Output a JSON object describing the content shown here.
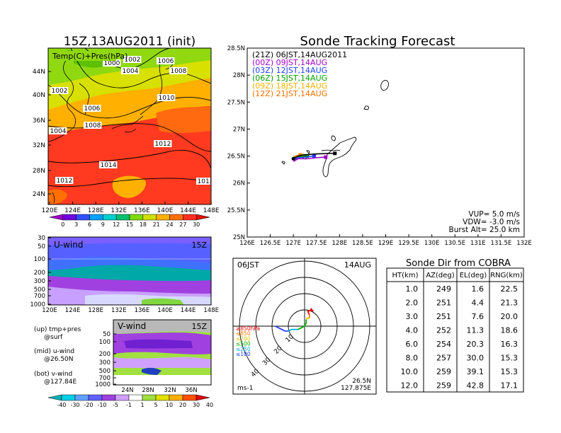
{
  "header": {
    "left_title": "15Z,13AUG2011 (init)",
    "right_title": "Sonde Tracking Forecast"
  },
  "temp_map": {
    "label": "Temp(C)+Pres(hPa)",
    "lat_ticks": [
      "44N",
      "40N",
      "36N",
      "32N",
      "28N",
      "24N"
    ],
    "lon_ticks": [
      "120E",
      "124E",
      "128E",
      "132E",
      "136E",
      "140E",
      "144E",
      "148E"
    ],
    "isobar_labels": [
      "1000",
      "1002",
      "1004",
      "1006",
      "1008",
      "1002",
      "1006",
      "1010",
      "1008",
      "1004",
      "1012",
      "1014",
      "1012",
      "101"
    ],
    "colorbar_ticks": [
      "0",
      "3",
      "6",
      "9",
      "12",
      "15",
      "18",
      "21",
      "24",
      "27",
      "30"
    ],
    "colorbar_colors": [
      "#a000c8",
      "#7000e0",
      "#3050ff",
      "#00a0ff",
      "#00d0d0",
      "#00c070",
      "#80dc00",
      "#d0e000",
      "#ffb000",
      "#ff7000",
      "#ff3020",
      "#e01000"
    ]
  },
  "u_wind": {
    "label": "U-wind",
    "time": "15Z",
    "p_ticks": [
      "30",
      "50",
      "100",
      "200",
      "300",
      "500",
      "700",
      "1000"
    ],
    "lon_ticks": [
      "120E",
      "124E",
      "128E",
      "132E",
      "136E",
      "140E",
      "144E",
      "148E"
    ]
  },
  "v_wind": {
    "label": "V-wind",
    "time": "15Z",
    "p_ticks": [
      "50",
      "100",
      "200",
      "300",
      "500",
      "700",
      "1000"
    ],
    "lat_ticks": [
      "24N",
      "28N",
      "32N",
      "36N"
    ],
    "colorbar_ticks": [
      "-40",
      "-30",
      "-20",
      "-10",
      "-5",
      "-1",
      "1",
      "5",
      "10",
      "20",
      "30",
      "40"
    ],
    "colorbar_colors": [
      "#00b4b4",
      "#00d0e8",
      "#60a0ff",
      "#6060ff",
      "#a040e0",
      "#d0a0ff",
      "#ffffff",
      "#a0e040",
      "#e0e000",
      "#ffb000",
      "#ff5000",
      "#e00000"
    ]
  },
  "legend_notes": {
    "up_line1": "(up) tmp+pres",
    "up_line2": "@surf",
    "mid_line1": "(mid) u-wind",
    "mid_line2": "@26.50N",
    "bot_line1": "(bot) v-wind",
    "bot_line2": "@127.84E"
  },
  "track_legend": [
    {
      "label": "(21Z)  06JST,14AUG2011",
      "color": "#000000"
    },
    {
      "label": "(00Z)  09JST,14AUG",
      "color": "#a000c8"
    },
    {
      "label": "(03Z)  12JST,14AUG",
      "color": "#2040ff"
    },
    {
      "label": "(06Z)  15JST,14AUG",
      "color": "#00a000"
    },
    {
      "label": "(09Z)  18JST,14AUG",
      "color": "#f0b000"
    },
    {
      "label": "(12Z)  21JST,14AUG",
      "color": "#ff7000"
    }
  ],
  "track_info": {
    "vup": "VUP=  5.0 m/s",
    "vdw": "VDW= -3.0 m/s",
    "burst": "Burst Alt= 25.0 km"
  },
  "chart_data": [
    {
      "type": "line",
      "title": "Sonde Tracking Forecast",
      "xlabel": "",
      "ylabel": "",
      "xlim": [
        126,
        132
      ],
      "ylim": [
        25,
        28.5
      ],
      "x_ticks": [
        "126E",
        "126.5E",
        "127E",
        "127.5E",
        "128E",
        "128.5E",
        "129E",
        "129.5E",
        "130E",
        "130.5E",
        "131E",
        "131.5E",
        "132E"
      ],
      "y_ticks": [
        "28.5N",
        "28N",
        "27.5N",
        "27N",
        "26.5N",
        "26N",
        "25.5N",
        "25N"
      ],
      "series": [
        {
          "name": "(21Z)  06JST,14AUG2011",
          "color": "#000000",
          "x": [
            127.0,
            127.1,
            127.2,
            127.5,
            127.8,
            127.9
          ],
          "y": [
            26.45,
            26.5,
            26.52,
            26.54,
            26.55,
            26.55
          ]
        },
        {
          "name": "(00Z)  09JST,14AUG",
          "color": "#a000c8",
          "x": [
            127.0,
            127.1,
            127.3,
            127.5,
            127.7
          ],
          "y": [
            26.4,
            26.45,
            26.45,
            26.47,
            26.48
          ]
        },
        {
          "name": "(03Z)  12JST,14AUG",
          "color": "#2040ff",
          "x": [
            127.0,
            127.1,
            127.25,
            127.45
          ],
          "y": [
            26.43,
            26.47,
            26.48,
            26.5
          ]
        },
        {
          "name": "(06Z)  15JST,14AUG",
          "color": "#00a000",
          "x": [
            127.0,
            127.1,
            127.3
          ],
          "y": [
            26.47,
            26.49,
            26.5
          ]
        },
        {
          "name": "(09Z)  18JST,14AUG",
          "color": "#f0b000",
          "x": [
            127.0,
            127.1,
            127.2
          ],
          "y": [
            26.48,
            26.5,
            26.51
          ]
        },
        {
          "name": "(12Z)  21JST,14AUG",
          "color": "#ff7000",
          "x": [
            127.0,
            127.08,
            127.15
          ],
          "y": [
            26.49,
            26.51,
            26.52
          ]
        }
      ]
    },
    {
      "type": "table",
      "title": "Sonde Dir from COBRA",
      "columns": [
        "HT(km)",
        "AZ(deg)",
        "EL(deg)",
        "RNG(km)"
      ],
      "rows": [
        [
          "1.0",
          "249",
          "1.6",
          "22.5"
        ],
        [
          "2.0",
          "251",
          "4.4",
          "21.3"
        ],
        [
          "3.0",
          "251",
          "7.6",
          "20.0"
        ],
        [
          "4.0",
          "252",
          "11.3",
          "18.6"
        ],
        [
          "6.0",
          "254",
          "20.3",
          "16.3"
        ],
        [
          "8.0",
          "257",
          "30.0",
          "15.3"
        ],
        [
          "10.0",
          "259",
          "39.1",
          "15.3"
        ],
        [
          "12.0",
          "259",
          "42.8",
          "17.1"
        ]
      ]
    },
    {
      "type": "scatter",
      "title": "06JST",
      "date": "14AUG",
      "location": [
        "26.5N",
        "127.875E"
      ],
      "unit": "ms-1",
      "ring_labels": [
        "10",
        "20",
        "30",
        "40"
      ],
      "level_labels": [
        {
          "label": "≥850hPa",
          "color": "#ff0000"
        },
        {
          "label": "≤850",
          "color": "#ff8000"
        },
        {
          "label": "≤700",
          "color": "#e0c000"
        },
        {
          "label": "≤500",
          "color": "#00b000"
        },
        {
          "label": "≤250",
          "color": "#00b0e0"
        },
        {
          "label": "≤100",
          "color": "#2040ff"
        }
      ],
      "hodograph": [
        {
          "color": "#2040ff",
          "points": [
            [
              -18,
              0
            ],
            [
              -16,
              -1
            ],
            [
              -14,
              -2
            ],
            [
              -12,
              -3
            ],
            [
              -10,
              -3
            ]
          ]
        },
        {
          "color": "#00b0e0",
          "points": [
            [
              -10,
              -3
            ],
            [
              -8,
              -2
            ],
            [
              -6,
              -2
            ],
            [
              -4,
              -2
            ]
          ]
        },
        {
          "color": "#00b000",
          "points": [
            [
              -4,
              -2
            ],
            [
              -2,
              -1
            ],
            [
              0,
              0
            ],
            [
              1,
              2
            ],
            [
              1,
              4
            ]
          ]
        },
        {
          "color": "#e0c000",
          "points": [
            [
              1,
              4
            ],
            [
              2,
              5
            ],
            [
              3,
              5
            ]
          ]
        },
        {
          "color": "#ff8000",
          "points": [
            [
              3,
              5
            ],
            [
              3,
              7
            ]
          ]
        },
        {
          "color": "#ff0000",
          "points": [
            [
              3,
              7
            ],
            [
              2,
              9
            ],
            [
              4,
              10
            ]
          ]
        }
      ]
    }
  ]
}
